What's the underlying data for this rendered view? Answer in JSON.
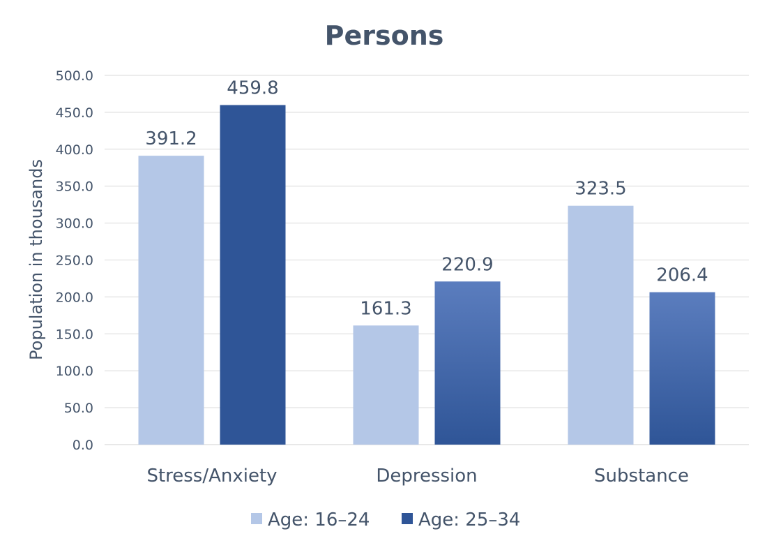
{
  "chart_data": {
    "type": "bar",
    "title": "Persons",
    "xlabel": "",
    "ylabel": "Population in thousands",
    "categories": [
      "Stress/Anxiety",
      "Depression",
      "Substance"
    ],
    "series": [
      {
        "name": "Age: 16–24",
        "values": [
          391.2,
          161.3,
          323.5
        ],
        "color": "#B4C7E7"
      },
      {
        "name": "Age: 25–34",
        "values": [
          459.8,
          220.9,
          206.4
        ],
        "color": "#2F5597"
      }
    ],
    "ylim": [
      0,
      500
    ],
    "yticks": [
      "0.0",
      "50.0",
      "100.0",
      "150.0",
      "200.0",
      "250.0",
      "300.0",
      "350.0",
      "400.0",
      "450.0",
      "500.0"
    ],
    "data_labels": true,
    "grid": true,
    "legend_position": "bottom"
  }
}
